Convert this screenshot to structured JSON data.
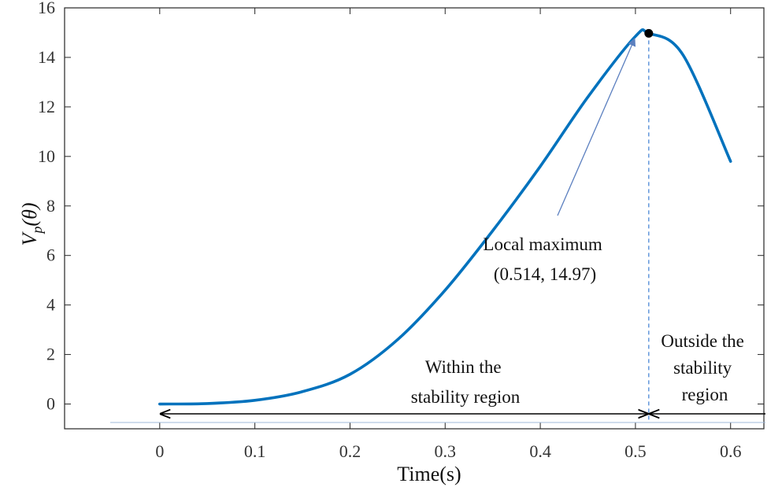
{
  "chart_data": {
    "type": "line",
    "xlabel": "Time(s)",
    "ylabel": {
      "main": "V",
      "sub": "p",
      "arg": "(θ)"
    },
    "xlim": [
      -0.1,
      0.635
    ],
    "ylim": [
      -1,
      16
    ],
    "xticks": [
      0,
      0.1,
      0.2,
      0.3,
      0.4,
      0.5,
      0.6
    ],
    "xtick_labels": [
      "0",
      "0.1",
      "0.2",
      "0.3",
      "0.4",
      "0.5",
      "0.6"
    ],
    "yticks": [
      0,
      2,
      4,
      6,
      8,
      10,
      12,
      14,
      16
    ],
    "ytick_labels": [
      "0",
      "2",
      "4",
      "6",
      "8",
      "10",
      "12",
      "14",
      "16"
    ],
    "grid": false,
    "line_color": "#0072BD",
    "series": [
      {
        "x": [
          0,
          0.05,
          0.1,
          0.15,
          0.2,
          0.25,
          0.3,
          0.35,
          0.4,
          0.45,
          0.5,
          0.514,
          0.55,
          0.6
        ],
        "y": [
          0,
          0.02,
          0.15,
          0.5,
          1.2,
          2.6,
          4.6,
          7.0,
          9.6,
          12.4,
          14.85,
          14.97,
          14.1,
          9.8
        ]
      }
    ],
    "marker": {
      "x": 0.514,
      "y": 14.97
    },
    "vline": {
      "x": 0.514
    },
    "annotations": {
      "local_max": [
        "Local maximum",
        "(0.514, 14.97)"
      ],
      "within": [
        "Within the",
        "stability region"
      ],
      "outside": [
        "Outside the",
        "stability",
        "region"
      ]
    }
  }
}
